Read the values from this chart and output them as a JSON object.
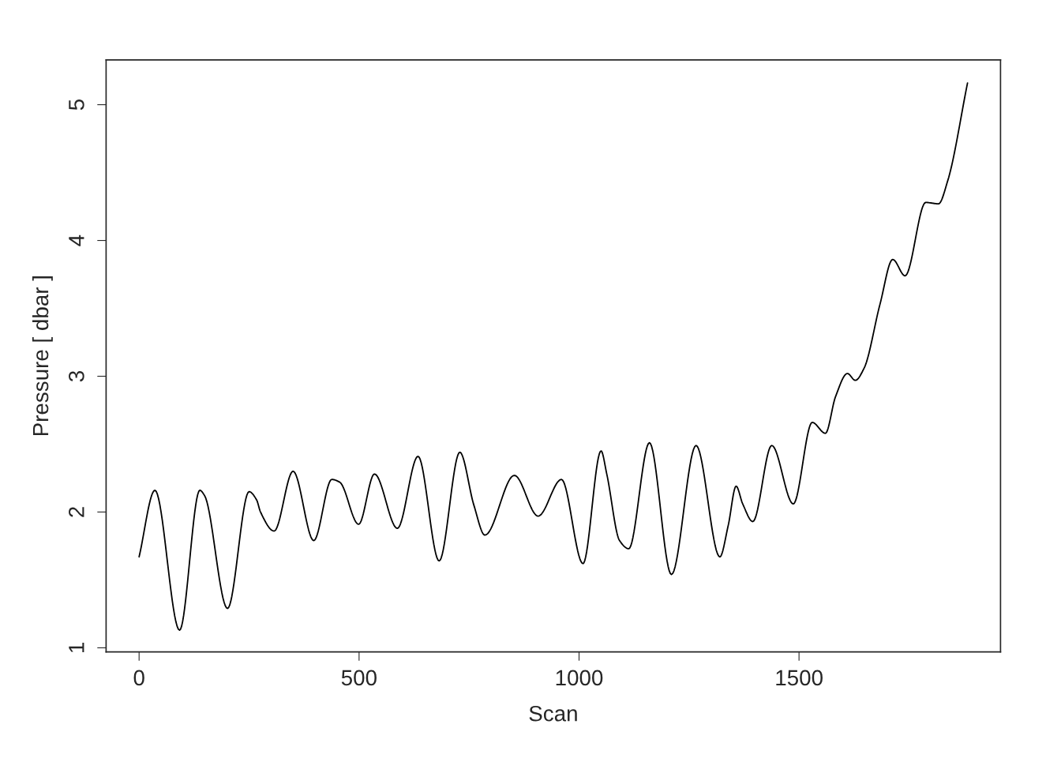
{
  "chart_data": {
    "type": "line",
    "xlabel": "Scan",
    "ylabel": "Pressure [ dbar ]",
    "x": [
      0,
      36,
      92,
      138,
      149,
      201,
      250,
      267,
      276,
      307,
      350,
      397,
      438,
      456,
      499,
      535,
      587,
      634,
      682,
      729,
      761,
      786,
      853,
      907,
      960,
      1009,
      1050,
      1063,
      1092,
      1113,
      1160,
      1210,
      1266,
      1320,
      1339,
      1357,
      1372,
      1395,
      1438,
      1487,
      1530,
      1560,
      1583,
      1610,
      1628,
      1648,
      1684,
      1713,
      1741,
      1788,
      1817,
      1838,
      1883
    ],
    "series": [
      {
        "color": "#000000",
        "values": [
          1.67,
          2.16,
          1.13,
          2.16,
          2.12,
          1.29,
          2.15,
          2.09,
          2.0,
          1.86,
          2.3,
          1.79,
          2.24,
          2.22,
          1.91,
          2.28,
          1.88,
          2.41,
          1.64,
          2.44,
          2.05,
          1.83,
          2.27,
          1.97,
          2.24,
          1.62,
          2.45,
          2.28,
          1.79,
          1.73,
          2.51,
          1.54,
          2.49,
          1.67,
          1.9,
          2.19,
          2.06,
          1.93,
          2.49,
          2.06,
          2.66,
          2.58,
          2.85,
          3.02,
          2.97,
          3.06,
          3.53,
          3.86,
          3.74,
          4.28,
          4.27,
          4.44,
          5.16
        ]
      }
    ],
    "xlim": [
      -75,
      1958
    ],
    "ylim": [
      0.97,
      5.33
    ],
    "xticks": [
      0,
      500,
      1000,
      1500
    ],
    "yticks": [
      1,
      2,
      3,
      4,
      5
    ]
  }
}
